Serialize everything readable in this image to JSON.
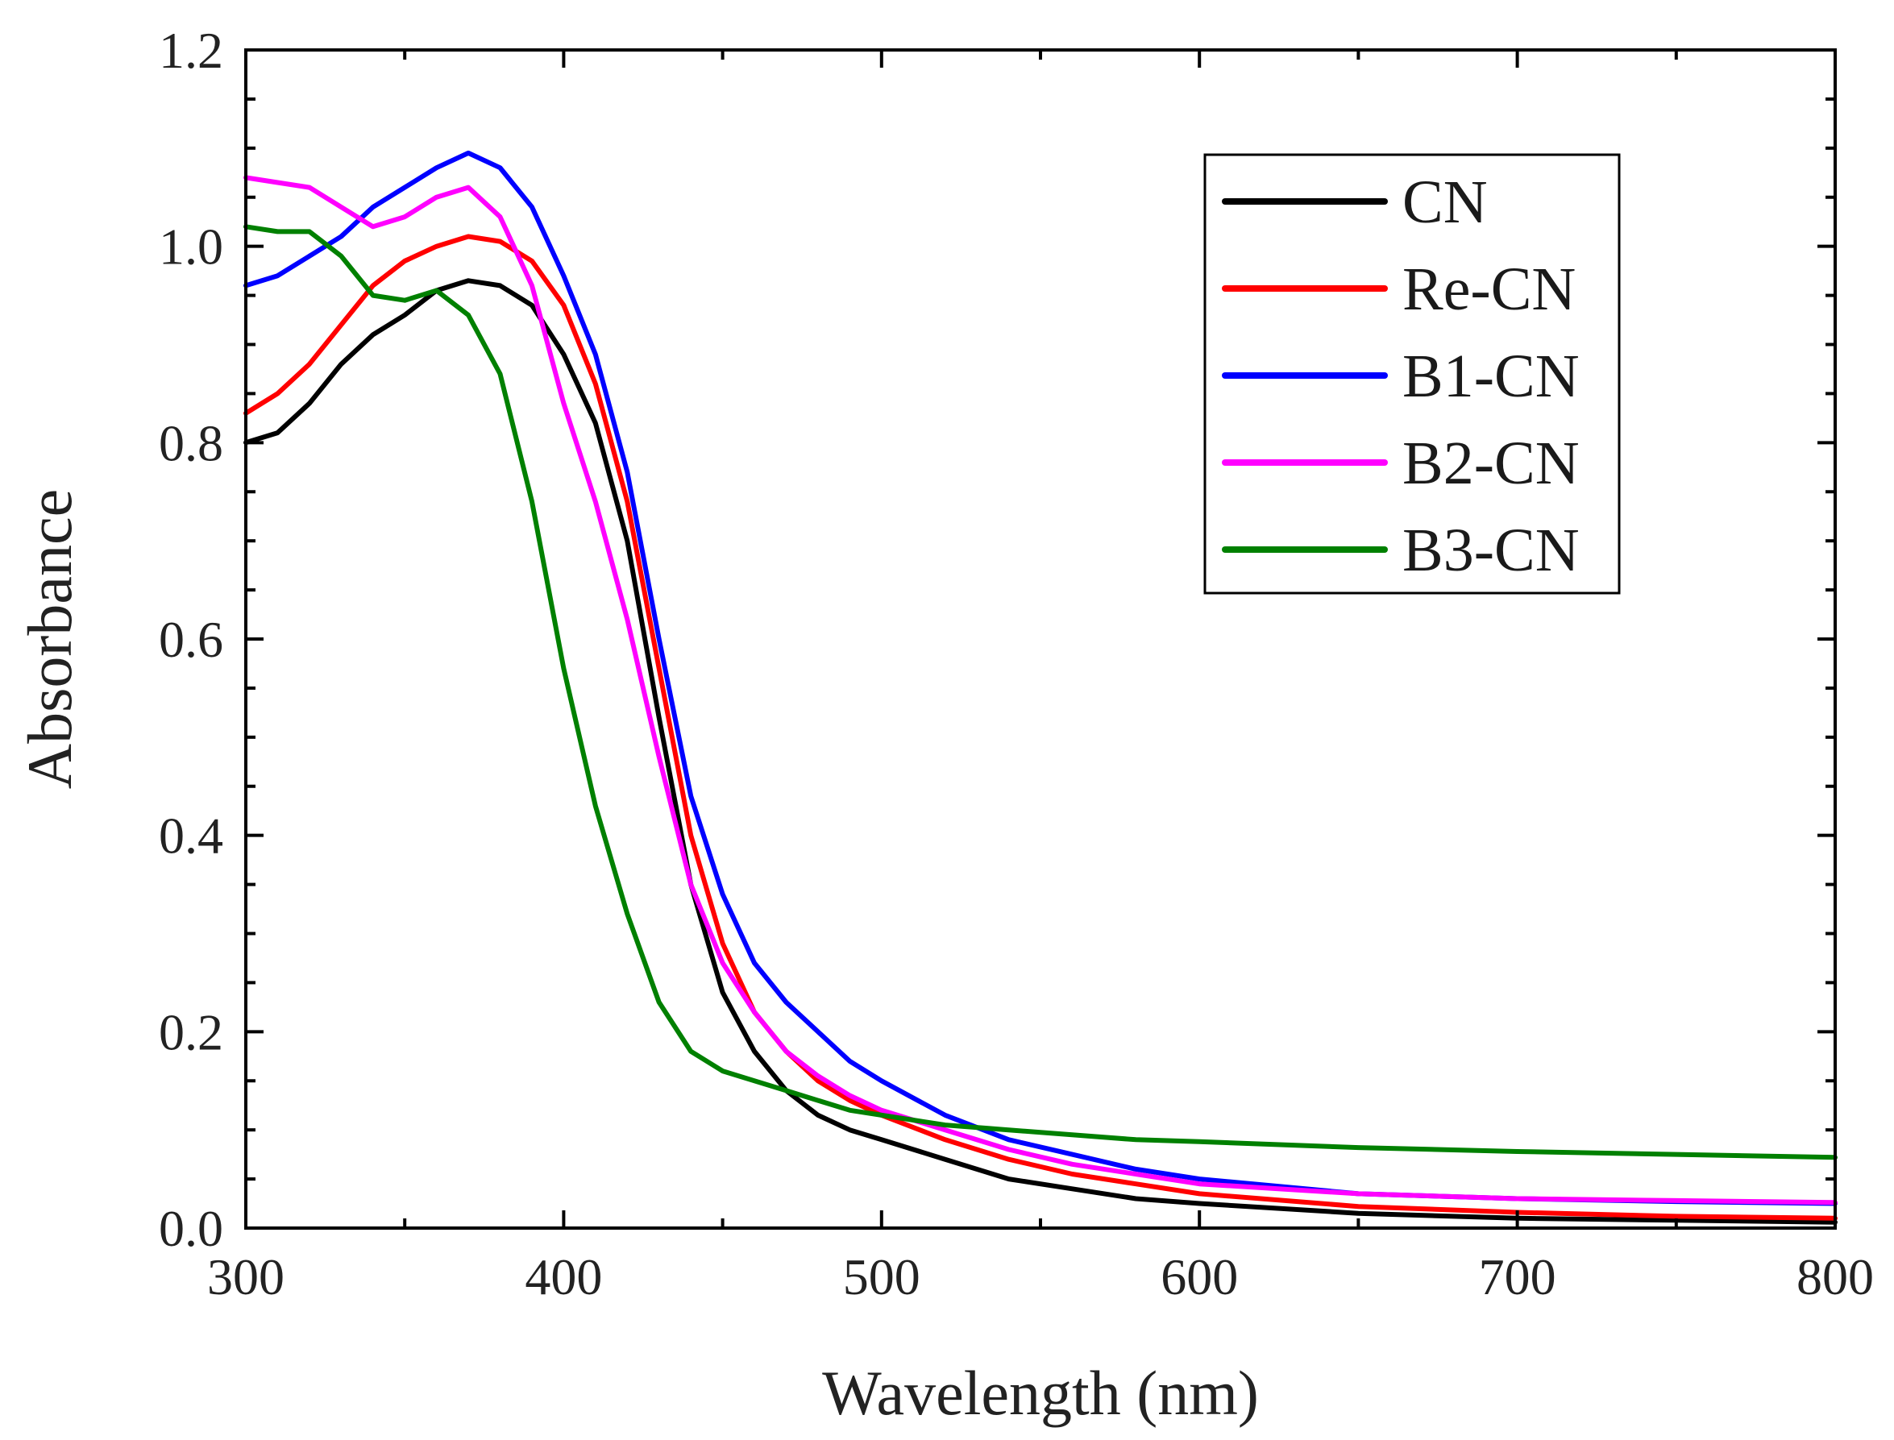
{
  "chart_data": {
    "type": "line",
    "title": "",
    "xlabel": "Wavelength (nm)",
    "ylabel": "Absorbance",
    "xlim": [
      300,
      800
    ],
    "ylim": [
      0.0,
      1.2
    ],
    "x_ticks": [
      "300",
      "400",
      "500",
      "600",
      "700",
      "800"
    ],
    "y_ticks": [
      "0.0",
      "0.2",
      "0.4",
      "0.6",
      "0.8",
      "1.0",
      "1.2"
    ],
    "grid": false,
    "legend_position": "top-right",
    "series": [
      {
        "name": "CN",
        "color": "#000000",
        "x": [
          300,
          310,
          320,
          330,
          340,
          350,
          360,
          370,
          380,
          390,
          400,
          410,
          420,
          430,
          440,
          450,
          460,
          470,
          480,
          490,
          500,
          520,
          540,
          560,
          580,
          600,
          650,
          700,
          750,
          800
        ],
        "y": [
          0.8,
          0.81,
          0.84,
          0.88,
          0.91,
          0.93,
          0.955,
          0.965,
          0.96,
          0.94,
          0.89,
          0.82,
          0.7,
          0.52,
          0.35,
          0.24,
          0.18,
          0.14,
          0.115,
          0.1,
          0.09,
          0.07,
          0.05,
          0.04,
          0.03,
          0.025,
          0.015,
          0.01,
          0.008,
          0.006
        ]
      },
      {
        "name": "Re-CN",
        "color": "#ff0000",
        "x": [
          300,
          310,
          320,
          330,
          340,
          350,
          360,
          370,
          380,
          390,
          400,
          410,
          420,
          430,
          440,
          450,
          460,
          470,
          480,
          490,
          500,
          520,
          540,
          560,
          580,
          600,
          650,
          700,
          750,
          800
        ],
        "y": [
          0.83,
          0.85,
          0.88,
          0.92,
          0.96,
          0.985,
          1.0,
          1.01,
          1.005,
          0.985,
          0.94,
          0.86,
          0.74,
          0.57,
          0.4,
          0.29,
          0.22,
          0.18,
          0.15,
          0.13,
          0.115,
          0.09,
          0.07,
          0.055,
          0.045,
          0.035,
          0.022,
          0.016,
          0.012,
          0.01
        ]
      },
      {
        "name": "B1-CN",
        "color": "#0000ff",
        "x": [
          300,
          310,
          320,
          330,
          340,
          350,
          360,
          370,
          380,
          390,
          400,
          410,
          420,
          430,
          440,
          450,
          460,
          470,
          480,
          490,
          500,
          520,
          540,
          560,
          580,
          600,
          650,
          700,
          750,
          800
        ],
        "y": [
          0.96,
          0.97,
          0.99,
          1.01,
          1.04,
          1.06,
          1.08,
          1.095,
          1.08,
          1.04,
          0.97,
          0.89,
          0.77,
          0.6,
          0.44,
          0.34,
          0.27,
          0.23,
          0.2,
          0.17,
          0.15,
          0.115,
          0.09,
          0.075,
          0.06,
          0.05,
          0.035,
          0.03,
          0.027,
          0.025
        ]
      },
      {
        "name": "B2-CN",
        "color": "#ff00ff",
        "x": [
          300,
          310,
          320,
          330,
          340,
          350,
          360,
          370,
          380,
          390,
          400,
          410,
          420,
          430,
          440,
          450,
          460,
          470,
          480,
          490,
          500,
          520,
          540,
          560,
          580,
          600,
          650,
          700,
          750,
          800
        ],
        "y": [
          1.07,
          1.065,
          1.06,
          1.04,
          1.02,
          1.03,
          1.05,
          1.06,
          1.03,
          0.96,
          0.84,
          0.74,
          0.62,
          0.48,
          0.35,
          0.27,
          0.22,
          0.18,
          0.155,
          0.135,
          0.12,
          0.1,
          0.08,
          0.065,
          0.055,
          0.045,
          0.035,
          0.03,
          0.028,
          0.026
        ]
      },
      {
        "name": "B3-CN",
        "color": "#008000",
        "x": [
          300,
          310,
          320,
          330,
          340,
          350,
          360,
          370,
          380,
          390,
          400,
          410,
          420,
          430,
          440,
          450,
          460,
          470,
          480,
          490,
          500,
          520,
          540,
          560,
          580,
          600,
          650,
          700,
          750,
          800
        ],
        "y": [
          1.02,
          1.015,
          1.015,
          0.99,
          0.95,
          0.945,
          0.955,
          0.93,
          0.87,
          0.74,
          0.57,
          0.43,
          0.32,
          0.23,
          0.18,
          0.16,
          0.15,
          0.14,
          0.13,
          0.12,
          0.115,
          0.105,
          0.1,
          0.095,
          0.09,
          0.088,
          0.082,
          0.078,
          0.075,
          0.072
        ]
      }
    ]
  }
}
